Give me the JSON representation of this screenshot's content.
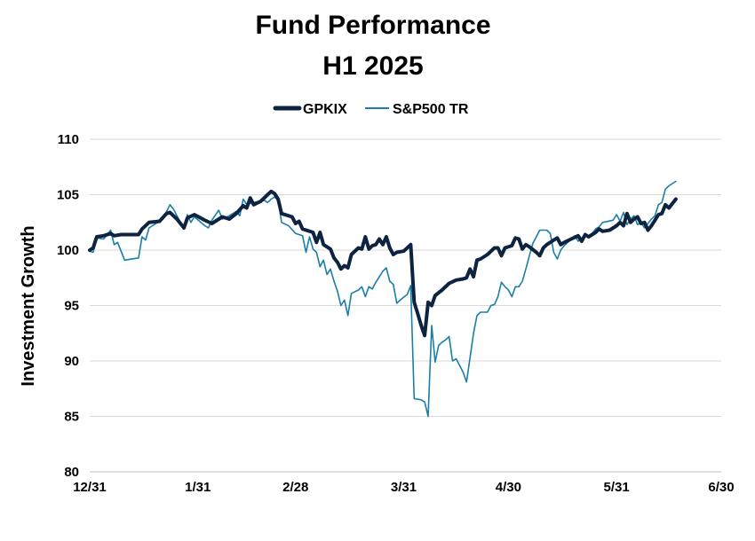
{
  "chart_data": {
    "type": "line",
    "title": [
      "Fund Performance",
      "H1 2025"
    ],
    "ylabel": "Investment Growth",
    "xlabel": "",
    "ylim": [
      80,
      110
    ],
    "yticks": [
      80,
      85,
      90,
      95,
      100,
      105,
      110
    ],
    "grid": true,
    "legend_position": "top-center",
    "x_ticks": [
      {
        "label": "12/31",
        "day": 0
      },
      {
        "label": "1/31",
        "day": 31
      },
      {
        "label": "2/28",
        "day": 59
      },
      {
        "label": "3/31",
        "day": 90
      },
      {
        "label": "4/30",
        "day": 120
      },
      {
        "label": "5/31",
        "day": 151
      },
      {
        "label": "6/30",
        "day": 181
      }
    ],
    "series": [
      {
        "name": "GPKIX",
        "color": "#0d2340",
        "points": [
          [
            0,
            100
          ],
          [
            1,
            100.2
          ],
          [
            2,
            101.2
          ],
          [
            4,
            101.3
          ],
          [
            6,
            101.5
          ],
          [
            7,
            101.3
          ],
          [
            9,
            101.4
          ],
          [
            12,
            101.4
          ],
          [
            14,
            101.4
          ],
          [
            15,
            101.9
          ],
          [
            17,
            102.5
          ],
          [
            20,
            102.6
          ],
          [
            22,
            103.3
          ],
          [
            23,
            103.4
          ],
          [
            25,
            102.8
          ],
          [
            27,
            102.0
          ],
          [
            28,
            102.9
          ],
          [
            30,
            103.2
          ],
          [
            33,
            102.7
          ],
          [
            35,
            102.4
          ],
          [
            38,
            103.0
          ],
          [
            40,
            102.8
          ],
          [
            42,
            103.3
          ],
          [
            44,
            104.0
          ],
          [
            45,
            103.8
          ],
          [
            46,
            104.7
          ],
          [
            47,
            104.1
          ],
          [
            49,
            104.4
          ],
          [
            51,
            105.0
          ],
          [
            52,
            105.3
          ],
          [
            53,
            105.1
          ],
          [
            54,
            104.6
          ],
          [
            55,
            103.3
          ],
          [
            58,
            103.0
          ],
          [
            59,
            102.4
          ],
          [
            60,
            102.6
          ],
          [
            61,
            101.9
          ],
          [
            64,
            101.6
          ],
          [
            65,
            100.7
          ],
          [
            66,
            101.6
          ],
          [
            67,
            100.5
          ],
          [
            69,
            100.1
          ],
          [
            70,
            99.3
          ],
          [
            71,
            98.9
          ],
          [
            72,
            98.3
          ],
          [
            73,
            98.6
          ],
          [
            74,
            98.4
          ],
          [
            75,
            99.6
          ],
          [
            77,
            100.2
          ],
          [
            78,
            100.1
          ],
          [
            79,
            101.2
          ],
          [
            80,
            100.1
          ],
          [
            81,
            100.4
          ],
          [
            82,
            100.5
          ],
          [
            83,
            101.0
          ],
          [
            84,
            100.5
          ],
          [
            85,
            101.2
          ],
          [
            86,
            100.2
          ],
          [
            87,
            99.6
          ],
          [
            88,
            99.8
          ],
          [
            90,
            99.9
          ],
          [
            92,
            100.5
          ],
          [
            93,
            95.3
          ],
          [
            94,
            94.3
          ],
          [
            95,
            93.2
          ],
          [
            96,
            92.3
          ],
          [
            97,
            95.3
          ],
          [
            98,
            95.0
          ],
          [
            99,
            95.9
          ],
          [
            101,
            96.4
          ],
          [
            103,
            97.0
          ],
          [
            105,
            97.3
          ],
          [
            107,
            97.4
          ],
          [
            108,
            97.5
          ],
          [
            109,
            98.3
          ],
          [
            110,
            97.6
          ],
          [
            111,
            99.1
          ],
          [
            112,
            99.2
          ],
          [
            114,
            99.6
          ],
          [
            116,
            100.2
          ],
          [
            117,
            100.2
          ],
          [
            118,
            99.5
          ],
          [
            119,
            100.2
          ],
          [
            121,
            100.4
          ],
          [
            122,
            101.1
          ],
          [
            123,
            101.0
          ],
          [
            124,
            100.1
          ],
          [
            125,
            100.5
          ],
          [
            126,
            100.3
          ],
          [
            128,
            99.8
          ],
          [
            129,
            99.5
          ],
          [
            130,
            100.2
          ],
          [
            131,
            100.5
          ],
          [
            133,
            100.9
          ],
          [
            134,
            101.1
          ],
          [
            135,
            100.5
          ],
          [
            136,
            100.7
          ],
          [
            138,
            101.0
          ],
          [
            140,
            101.3
          ],
          [
            141,
            100.8
          ],
          [
            142,
            101.4
          ],
          [
            143,
            101.2
          ],
          [
            145,
            101.6
          ],
          [
            146,
            101.9
          ],
          [
            147,
            101.7
          ],
          [
            149,
            101.8
          ],
          [
            151,
            102.2
          ],
          [
            152,
            102.5
          ],
          [
            153,
            102.2
          ],
          [
            154,
            103.3
          ],
          [
            155,
            102.5
          ],
          [
            156,
            102.8
          ],
          [
            157,
            103.0
          ],
          [
            158,
            102.4
          ],
          [
            159,
            102.5
          ],
          [
            160,
            101.8
          ],
          [
            161,
            102.2
          ],
          [
            162,
            102.7
          ],
          [
            163,
            103.2
          ],
          [
            164,
            103.3
          ],
          [
            165,
            104.1
          ],
          [
            166,
            103.8
          ],
          [
            167,
            104.2
          ],
          [
            168,
            104.6
          ]
        ]
      },
      {
        "name": "S&P500 TR",
        "color": "#1a7fa6",
        "points": [
          [
            0,
            99.9
          ],
          [
            1,
            99.8
          ],
          [
            2,
            101.1
          ],
          [
            4,
            101.0
          ],
          [
            6,
            101.8
          ],
          [
            7,
            100.5
          ],
          [
            8,
            100.7
          ],
          [
            10,
            99.1
          ],
          [
            14,
            99.3
          ],
          [
            15,
            101.2
          ],
          [
            16,
            100.9
          ],
          [
            17,
            102.0
          ],
          [
            19,
            102.4
          ],
          [
            21,
            102.8
          ],
          [
            23,
            104.1
          ],
          [
            24,
            103.7
          ],
          [
            26,
            102.5
          ],
          [
            27,
            102.1
          ],
          [
            28,
            103.2
          ],
          [
            29,
            102.5
          ],
          [
            30,
            103.0
          ],
          [
            33,
            102.2
          ],
          [
            34,
            102.0
          ],
          [
            35,
            102.7
          ],
          [
            37,
            103.6
          ],
          [
            38,
            102.8
          ],
          [
            40,
            103.1
          ],
          [
            42,
            103.5
          ],
          [
            43,
            103.1
          ],
          [
            44,
            104.6
          ],
          [
            45,
            104.1
          ],
          [
            47,
            104.3
          ],
          [
            50,
            104.5
          ],
          [
            51,
            104.3
          ],
          [
            52,
            104.6
          ],
          [
            53,
            104.8
          ],
          [
            54,
            104.5
          ],
          [
            55,
            102.5
          ],
          [
            57,
            102.2
          ],
          [
            59,
            101.5
          ],
          [
            61,
            101.3
          ],
          [
            62,
            99.8
          ],
          [
            63,
            101.2
          ],
          [
            64,
            100.1
          ],
          [
            65,
            99.8
          ],
          [
            66,
            98.5
          ],
          [
            67,
            99.1
          ],
          [
            68,
            97.8
          ],
          [
            69,
            98.3
          ],
          [
            70,
            97.2
          ],
          [
            71,
            96.3
          ],
          [
            72,
            95.0
          ],
          [
            73,
            95.5
          ],
          [
            74,
            94.1
          ],
          [
            75,
            96.1
          ],
          [
            77,
            96.4
          ],
          [
            78,
            96.7
          ],
          [
            79,
            95.8
          ],
          [
            80,
            96.7
          ],
          [
            81,
            96.5
          ],
          [
            82,
            97.1
          ],
          [
            84,
            98.1
          ],
          [
            85,
            98.4
          ],
          [
            86,
            97.2
          ],
          [
            87,
            96.9
          ],
          [
            88,
            95.2
          ],
          [
            89,
            95.5
          ],
          [
            91,
            96.0
          ],
          [
            92,
            96.8
          ],
          [
            93,
            86.6
          ],
          [
            95,
            86.5
          ],
          [
            96,
            86.3
          ],
          [
            97,
            85.0
          ],
          [
            98,
            93.2
          ],
          [
            99,
            89.9
          ],
          [
            100,
            91.4
          ],
          [
            101,
            91.7
          ],
          [
            102,
            91.9
          ],
          [
            103,
            92.2
          ],
          [
            104,
            90.0
          ],
          [
            105,
            90.2
          ],
          [
            106,
            89.6
          ],
          [
            107,
            89.0
          ],
          [
            108,
            88.1
          ],
          [
            109,
            90.3
          ],
          [
            110,
            92.5
          ],
          [
            111,
            94.1
          ],
          [
            112,
            94.4
          ],
          [
            114,
            94.4
          ],
          [
            115,
            95.0
          ],
          [
            116,
            95.1
          ],
          [
            117,
            95.8
          ],
          [
            118,
            97.1
          ],
          [
            119,
            96.7
          ],
          [
            120,
            96.4
          ],
          [
            121,
            95.8
          ],
          [
            122,
            96.7
          ],
          [
            123,
            96.7
          ],
          [
            124,
            97.2
          ],
          [
            125,
            98.3
          ],
          [
            126,
            99.5
          ],
          [
            127,
            100.6
          ],
          [
            128,
            101.2
          ],
          [
            129,
            101.8
          ],
          [
            131,
            101.8
          ],
          [
            132,
            101.5
          ],
          [
            133,
            99.8
          ],
          [
            134,
            99.2
          ],
          [
            135,
            100.0
          ],
          [
            136,
            100.4
          ],
          [
            137,
            100.7
          ],
          [
            139,
            101.3
          ],
          [
            140,
            100.8
          ],
          [
            141,
            101.1
          ],
          [
            143,
            101.3
          ],
          [
            144,
            101.5
          ],
          [
            145,
            101.9
          ],
          [
            146,
            102.1
          ],
          [
            147,
            102.5
          ],
          [
            150,
            102.7
          ],
          [
            151,
            103.2
          ],
          [
            152,
            102.6
          ],
          [
            153,
            103.4
          ],
          [
            154,
            102.3
          ],
          [
            155,
            102.8
          ],
          [
            156,
            103.1
          ],
          [
            157,
            102.3
          ],
          [
            158,
            102.5
          ],
          [
            159,
            102.0
          ],
          [
            160,
            102.4
          ],
          [
            161,
            102.8
          ],
          [
            162,
            103.1
          ],
          [
            163,
            104.1
          ],
          [
            164,
            104.3
          ],
          [
            165,
            105.5
          ],
          [
            166,
            105.8
          ],
          [
            167,
            106.0
          ],
          [
            168,
            106.2
          ]
        ]
      }
    ]
  }
}
